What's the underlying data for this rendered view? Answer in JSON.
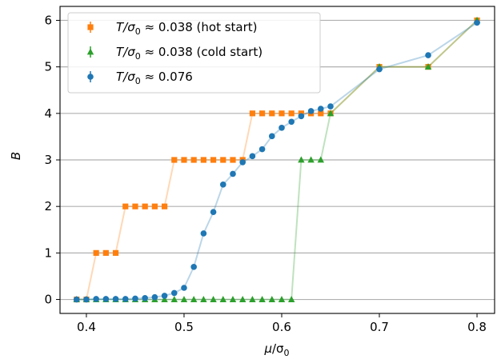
{
  "chart_data": {
    "type": "line",
    "xlabel_main": "μ",
    "xlabel_sub": "0",
    "xlabel_mid": "/σ",
    "ylabel": "B",
    "xlim": [
      0.373,
      0.818
    ],
    "ylim": [
      -0.3,
      6.3
    ],
    "xticks": [
      0.4,
      0.5,
      0.6,
      0.7,
      0.8
    ],
    "xtick_labels": [
      "0.4",
      "0.5",
      "0.6",
      "0.7",
      "0.8"
    ],
    "yticks": [
      0,
      1,
      2,
      3,
      4,
      5,
      6
    ],
    "ytick_labels": [
      "0",
      "1",
      "2",
      "3",
      "4",
      "5",
      "6"
    ],
    "grid": "horizontal",
    "legend_position": "top-left",
    "series": [
      {
        "name": "T/σ0 ≈ 0.038 (hot start)",
        "legend_prefix": "T/σ",
        "legend_sub": "0",
        "legend_suffix": " ≈ 0.038 (hot start)",
        "color": "#ff7f0e",
        "marker": "square",
        "x": [
          0.39,
          0.4,
          0.41,
          0.42,
          0.43,
          0.44,
          0.45,
          0.46,
          0.47,
          0.48,
          0.49,
          0.5,
          0.51,
          0.52,
          0.53,
          0.54,
          0.55,
          0.56,
          0.57,
          0.58,
          0.59,
          0.6,
          0.61,
          0.62,
          0.63,
          0.64,
          0.65,
          0.7,
          0.75,
          0.8
        ],
        "y": [
          0,
          0,
          1,
          1,
          1,
          2,
          2,
          2,
          2,
          2,
          3,
          3,
          3,
          3,
          3,
          3,
          3,
          3,
          4,
          4,
          4,
          4,
          4,
          4,
          4,
          4,
          4,
          5,
          5,
          6
        ]
      },
      {
        "name": "T/σ0 ≈ 0.038 (cold start)",
        "legend_prefix": "T/σ",
        "legend_sub": "0",
        "legend_suffix": " ≈ 0.038 (cold start)",
        "color": "#2ca02c",
        "marker": "triangle",
        "x": [
          0.39,
          0.4,
          0.41,
          0.42,
          0.43,
          0.44,
          0.45,
          0.46,
          0.47,
          0.48,
          0.49,
          0.5,
          0.51,
          0.52,
          0.53,
          0.54,
          0.55,
          0.56,
          0.57,
          0.58,
          0.59,
          0.6,
          0.61,
          0.62,
          0.63,
          0.64,
          0.65,
          0.7,
          0.75,
          0.8
        ],
        "y": [
          0,
          0,
          0,
          0,
          0,
          0,
          0,
          0,
          0,
          0,
          0,
          0,
          0,
          0,
          0,
          0,
          0,
          0,
          0,
          0,
          0,
          0,
          0,
          3,
          3,
          3,
          4,
          5,
          5,
          6
        ]
      },
      {
        "name": "T/σ0 ≈ 0.076",
        "legend_prefix": "T/σ",
        "legend_sub": "0",
        "legend_suffix": " ≈ 0.076",
        "color": "#1f77b4",
        "marker": "circle",
        "x": [
          0.39,
          0.4,
          0.41,
          0.42,
          0.43,
          0.44,
          0.45,
          0.46,
          0.47,
          0.48,
          0.49,
          0.5,
          0.51,
          0.52,
          0.53,
          0.54,
          0.55,
          0.56,
          0.57,
          0.58,
          0.59,
          0.6,
          0.61,
          0.62,
          0.63,
          0.64,
          0.65,
          0.7,
          0.75,
          0.8
        ],
        "y": [
          0,
          0,
          0.01,
          0.01,
          0.01,
          0.01,
          0.02,
          0.03,
          0.05,
          0.08,
          0.14,
          0.25,
          0.7,
          1.42,
          1.88,
          2.47,
          2.7,
          2.95,
          3.08,
          3.23,
          3.51,
          3.69,
          3.82,
          3.94,
          4.05,
          4.1,
          4.15,
          4.95,
          5.25,
          5.95
        ]
      }
    ]
  }
}
